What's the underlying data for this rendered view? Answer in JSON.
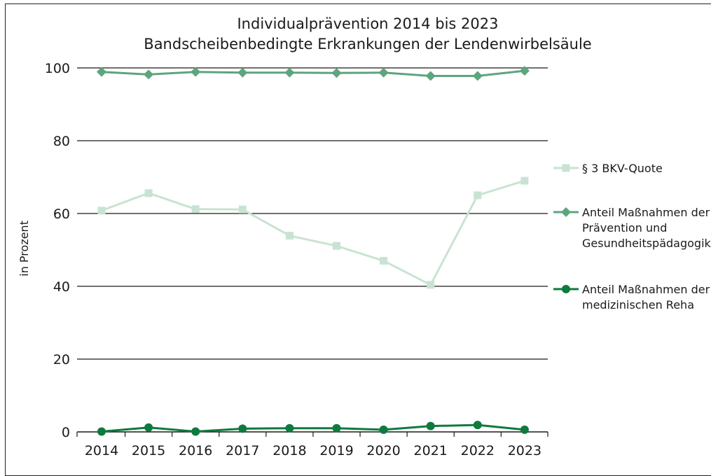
{
  "chart_data": {
    "type": "line",
    "title": "Individualprävention 2014 bis 2023",
    "subtitle": "Bandscheibenbedingte Erkrankungen der Lendenwirbelsäule",
    "ylabel": "in Prozent",
    "xlabel": "",
    "x": [
      "2014",
      "2015",
      "2016",
      "2017",
      "2018",
      "2019",
      "2020",
      "2021",
      "2022",
      "2023"
    ],
    "ylim": [
      0,
      100
    ],
    "yticks": [
      "0",
      "20",
      "40",
      "60",
      "80",
      "100"
    ],
    "grid": true,
    "legend_position": "right",
    "series": [
      {
        "name": "§ 3 BKV-Quote",
        "marker": "square",
        "color": "#c9e3d2",
        "values": [
          60.8,
          65.6,
          61.2,
          61.1,
          53.9,
          51.1,
          47.0,
          40.4,
          65.0,
          69.0
        ]
      },
      {
        "name": "Anteil Maßnahmen der Prävention und Gesundheitspädagogik",
        "legend_lines": [
          "Anteil Maßnahmen der",
          "Prävention und",
          "Gesundheitspädagogik"
        ],
        "marker": "diamond",
        "color": "#5da57d",
        "values": [
          98.9,
          98.2,
          98.9,
          98.7,
          98.7,
          98.6,
          98.7,
          97.8,
          97.8,
          99.2
        ]
      },
      {
        "name": "Anteil Maßnahmen der medizinischen Reha",
        "legend_lines": [
          "Anteil Maßnahmen der",
          "medizinischen Reha"
        ],
        "marker": "circle",
        "color": "#0e7a3e",
        "values": [
          0.1,
          1.2,
          0.1,
          0.9,
          1.0,
          1.0,
          0.6,
          1.6,
          1.9,
          0.6
        ]
      }
    ]
  }
}
